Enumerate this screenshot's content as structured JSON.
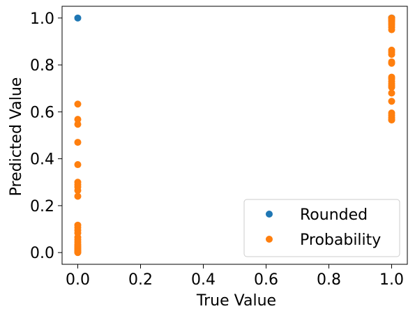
{
  "chart_data": {
    "type": "scatter",
    "title": "",
    "xlabel": "True Value",
    "ylabel": "Predicted Value",
    "xlim": [
      -0.05,
      1.05
    ],
    "ylim": [
      -0.05,
      1.05
    ],
    "grid": false,
    "legend_position": "bottom-right",
    "x_ticks": [
      0.0,
      0.2,
      0.4,
      0.6,
      0.8,
      1.0
    ],
    "y_ticks": [
      0.0,
      0.2,
      0.4,
      0.6,
      0.8,
      1.0
    ],
    "x_tick_labels": [
      "0.0",
      "0.2",
      "0.4",
      "0.6",
      "0.8",
      "1.0"
    ],
    "y_tick_labels": [
      "0.0",
      "0.2",
      "0.4",
      "0.6",
      "0.8",
      "1.0"
    ],
    "series": [
      {
        "name": "Rounded",
        "color": "#1f77b4",
        "x": [
          0,
          1,
          1,
          1
        ],
        "y": [
          1.0,
          1.0,
          1.0,
          1.0
        ]
      },
      {
        "name": "Probability",
        "color": "#ff7f0e",
        "x": [
          0,
          0,
          0,
          0,
          0,
          0,
          0,
          0,
          0,
          0,
          0,
          0,
          0,
          0,
          0,
          0,
          0,
          0,
          0,
          0,
          0,
          0,
          0,
          0,
          0,
          0,
          0,
          0,
          1,
          1,
          1,
          1,
          1,
          1,
          1,
          1,
          1,
          1,
          1,
          1,
          1,
          1,
          1,
          1,
          1,
          1,
          1,
          1,
          1,
          1,
          1,
          1,
          1,
          1,
          1
        ],
        "y": [
          0.633,
          0.568,
          0.547,
          0.47,
          0.375,
          0.3,
          0.29,
          0.28,
          0.265,
          0.24,
          0.117,
          0.107,
          0.095,
          0.083,
          0.065,
          0.055,
          0.045,
          0.035,
          0.028,
          0.022,
          0.016,
          0.011,
          0.008,
          0.006,
          0.004,
          0.003,
          0.002,
          0.0,
          1.0,
          0.998,
          0.995,
          0.99,
          0.985,
          0.978,
          0.97,
          0.96,
          0.95,
          0.863,
          0.855,
          0.845,
          0.813,
          0.807,
          0.748,
          0.74,
          0.73,
          0.72,
          0.712,
          0.705,
          0.68,
          0.645,
          0.595,
          0.585,
          0.575,
          0.567,
          0.565
        ]
      }
    ]
  }
}
